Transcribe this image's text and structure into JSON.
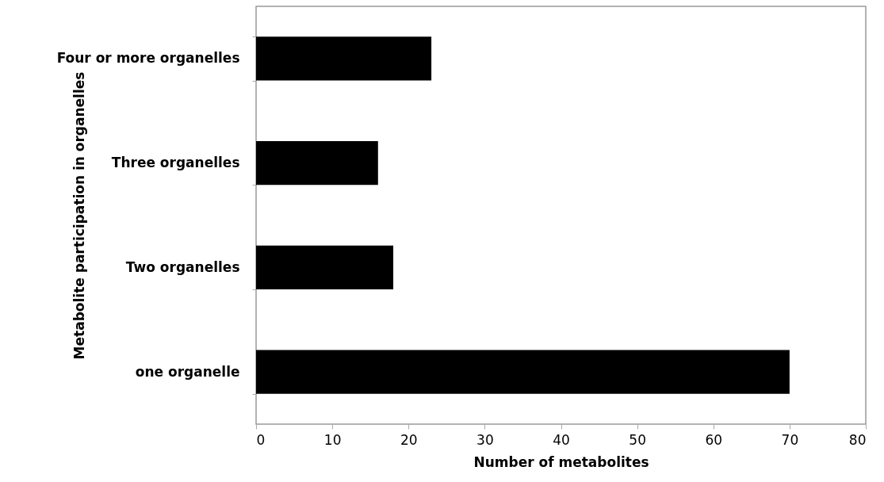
{
  "chart_data": {
    "type": "bar",
    "orientation": "horizontal",
    "xlabel": "Number of metabolites",
    "ylabel": "Metabolite participation in organelles",
    "categories": [
      "Four or more organelles",
      "Three organelles",
      "Two organelles",
      "one organelle"
    ],
    "values": [
      23,
      16,
      18,
      70
    ],
    "color": "#000000",
    "xlim": [
      0,
      80
    ],
    "xticks": [
      0,
      10,
      20,
      30,
      40,
      50,
      60,
      70,
      80
    ],
    "grid": false
  }
}
